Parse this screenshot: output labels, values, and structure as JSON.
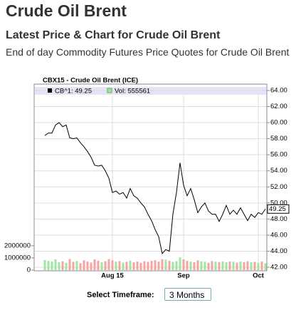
{
  "page": {
    "title": "Crude Oil Brent",
    "subtitle": "Latest Price & Chart for Crude Oil Brent",
    "description": "End of day Commodity Futures Price Quotes for Crude Oil Brent"
  },
  "controls": {
    "label": "Select Timeframe:",
    "value": "3 Months"
  },
  "chart_data": {
    "type": "line",
    "title": "CBX15 - Crude Oil Brent (ICE)",
    "categories": [
      null,
      null,
      null,
      null,
      null,
      null,
      null,
      null,
      null,
      null,
      null,
      null,
      null,
      null,
      null,
      null,
      null,
      null,
      null,
      "Aug 15",
      null,
      null,
      null,
      null,
      null,
      null,
      null,
      null,
      null,
      null,
      null,
      null,
      null,
      null,
      null,
      null,
      null,
      null,
      null,
      "Sep",
      null,
      null,
      null,
      null,
      null,
      null,
      null,
      null,
      null,
      null,
      null,
      null,
      null,
      null,
      null,
      null,
      null,
      null,
      null,
      null,
      "Oct",
      null,
      null
    ],
    "series": [
      {
        "name": "CB^1: 49.25",
        "color": "#000000",
        "values": [
          58.4,
          58.7,
          58.7,
          59.7,
          60.0,
          59.5,
          59.7,
          58.1,
          58.0,
          58.1,
          57.5,
          57.0,
          56.4,
          55.7,
          54.7,
          54.6,
          54.7,
          54.0,
          53.1,
          51.3,
          51.5,
          51.1,
          51.3,
          50.6,
          51.8,
          50.9,
          50.6,
          50.0,
          49.5,
          48.6,
          47.8,
          46.7,
          45.8,
          43.7,
          44.2,
          44.0,
          48.6,
          51.3,
          55.0,
          52.2,
          50.9,
          51.8,
          50.4,
          48.8,
          49.5,
          50.0,
          49.0,
          48.6,
          48.6,
          47.7,
          48.6,
          49.7,
          48.6,
          49.1,
          48.6,
          49.4,
          48.6,
          47.8,
          48.6,
          48.2,
          48.8,
          48.6,
          49.25
        ]
      },
      {
        "name": "Vol: 555561",
        "color": "#a0e6a0",
        "down_color": "#f4a4a4",
        "axis": "y2",
        "values": [
          820000,
          760000,
          700000,
          880000,
          650000,
          720000,
          600000,
          910000,
          680000,
          740000,
          560000,
          800000,
          700000,
          620000,
          880000,
          760000,
          650000,
          720000,
          900000,
          800000,
          700000,
          740000,
          620000,
          680000,
          780000,
          640000,
          700000,
          600000,
          720000,
          680000,
          760000,
          820000,
          700000,
          900000,
          860000,
          760000,
          680000,
          740000,
          1050000,
          880000,
          760000,
          700000,
          640000,
          800000,
          720000,
          680000,
          600000,
          740000,
          700000,
          660000,
          720000,
          640000,
          700000,
          680000,
          620000,
          700000,
          660000,
          720000,
          640000,
          680000,
          600000,
          700000,
          555561
        ]
      }
    ],
    "ylim": [
      42,
      64
    ],
    "yticks": [
      {
        "value": 42,
        "label": "42.00"
      },
      {
        "value": 44,
        "label": "44.00"
      },
      {
        "value": 46,
        "label": "46.00"
      },
      {
        "value": 48,
        "label": "48.00"
      },
      {
        "value": 50,
        "label": "50.00"
      },
      {
        "value": 52,
        "label": "52.00"
      },
      {
        "value": 54,
        "label": "54.00"
      },
      {
        "value": 56,
        "label": "56.00"
      },
      {
        "value": 58,
        "label": "58.00"
      },
      {
        "value": 60,
        "label": "60.00"
      },
      {
        "value": 62,
        "label": "62.00"
      },
      {
        "value": 64,
        "label": "64.00"
      }
    ],
    "y2lim": [
      0,
      2400000
    ],
    "y2ticks": [
      0,
      1000000,
      2000000
    ],
    "grid": true
  }
}
